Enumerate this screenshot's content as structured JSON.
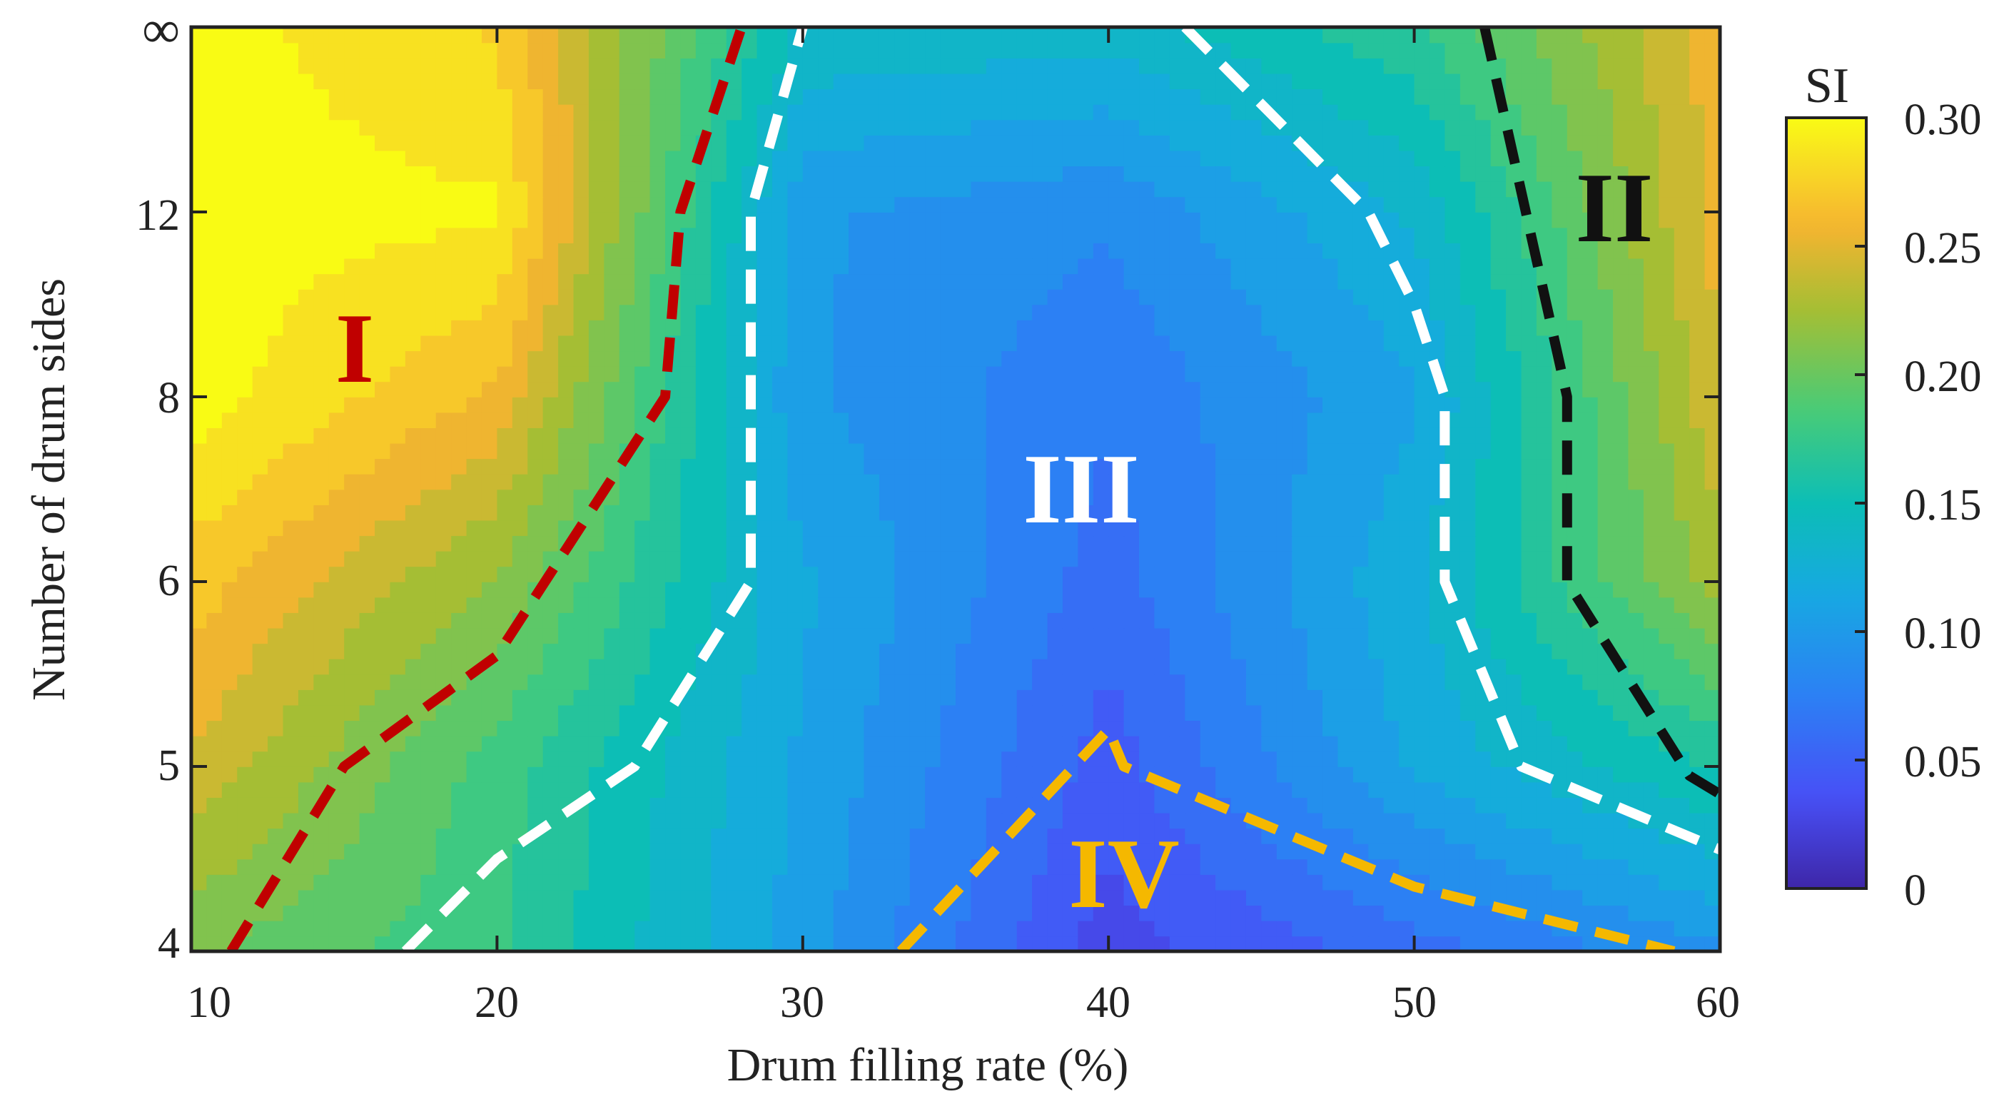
{
  "chart_data": {
    "type": "heatmap",
    "subtype": "filled-contour",
    "xlabel": "Drum filling rate (%)",
    "ylabel": "Number of drum sides",
    "x": [
      10,
      20,
      30,
      40,
      50,
      60
    ],
    "xlim": [
      10,
      60
    ],
    "y_categories": [
      "4",
      "5",
      "6",
      "8",
      "12",
      "∞"
    ],
    "y": [
      4,
      5,
      6,
      8,
      12,
      "∞"
    ],
    "x_tick_labels": [
      "10",
      "20",
      "30",
      "40",
      "50",
      "60"
    ],
    "y_tick_labels": [
      "4",
      "5",
      "6",
      "8",
      "12",
      "∞"
    ],
    "z_grid": [
      [
        0.205,
        0.175,
        0.105,
        0.03,
        0.06,
        0.095
      ],
      [
        0.245,
        0.18,
        0.11,
        0.045,
        0.115,
        0.16
      ],
      [
        0.27,
        0.215,
        0.115,
        0.06,
        0.125,
        0.225
      ],
      [
        0.3,
        0.26,
        0.1,
        0.07,
        0.11,
        0.245
      ],
      [
        0.3,
        0.295,
        0.1,
        0.085,
        0.13,
        0.255
      ],
      [
        0.3,
        0.275,
        0.14,
        0.135,
        0.17,
        0.255
      ]
    ],
    "colorbar": {
      "title": "SI",
      "range": [
        0,
        0.3
      ],
      "tick_labels": [
        "0",
        "0.05",
        "0.10",
        "0.15",
        "0.20",
        "0.25",
        "0.30"
      ],
      "ticks": [
        0,
        0.05,
        0.1,
        0.15,
        0.2,
        0.25,
        0.3
      ]
    },
    "regions": [
      {
        "label": "I",
        "color": "#c00000"
      },
      {
        "label": "II",
        "color": "#111111"
      },
      {
        "label": "III",
        "color": "#ffffff"
      },
      {
        "label": "IV",
        "color": "#f5b800"
      }
    ],
    "boundaries": [
      {
        "name": "red-boundary",
        "color": "#c00000",
        "points": [
          [
            11.3,
            4
          ],
          [
            15,
            5
          ],
          [
            20,
            5.6
          ],
          [
            25.5,
            8
          ],
          [
            26,
            12
          ],
          [
            28,
            "∞"
          ]
        ]
      },
      {
        "name": "white-boundary-left",
        "color": "#ffffff",
        "points": [
          [
            17,
            4
          ],
          [
            20,
            4.5
          ],
          [
            24.5,
            5
          ],
          [
            28.3,
            6
          ],
          [
            28.3,
            12
          ],
          [
            30,
            "∞"
          ]
        ]
      },
      {
        "name": "white-boundary-right",
        "color": "#ffffff",
        "points": [
          [
            42.5,
            "∞"
          ],
          [
            48.5,
            12
          ],
          [
            50,
            10
          ],
          [
            51,
            8
          ],
          [
            51,
            6
          ],
          [
            53.5,
            5
          ],
          [
            60,
            4.55
          ]
        ]
      },
      {
        "name": "black-boundary",
        "color": "#111111",
        "points": [
          [
            52.3,
            "∞"
          ],
          [
            55,
            8
          ],
          [
            55,
            6
          ],
          [
            59,
            4.95
          ],
          [
            60,
            4.85
          ]
        ]
      },
      {
        "name": "orange-boundary",
        "color": "#f5b800",
        "points": [
          [
            33.2,
            4
          ],
          [
            40,
            5.2
          ],
          [
            40.5,
            5
          ],
          [
            50,
            4.35
          ],
          [
            58.5,
            4
          ]
        ]
      }
    ]
  }
}
